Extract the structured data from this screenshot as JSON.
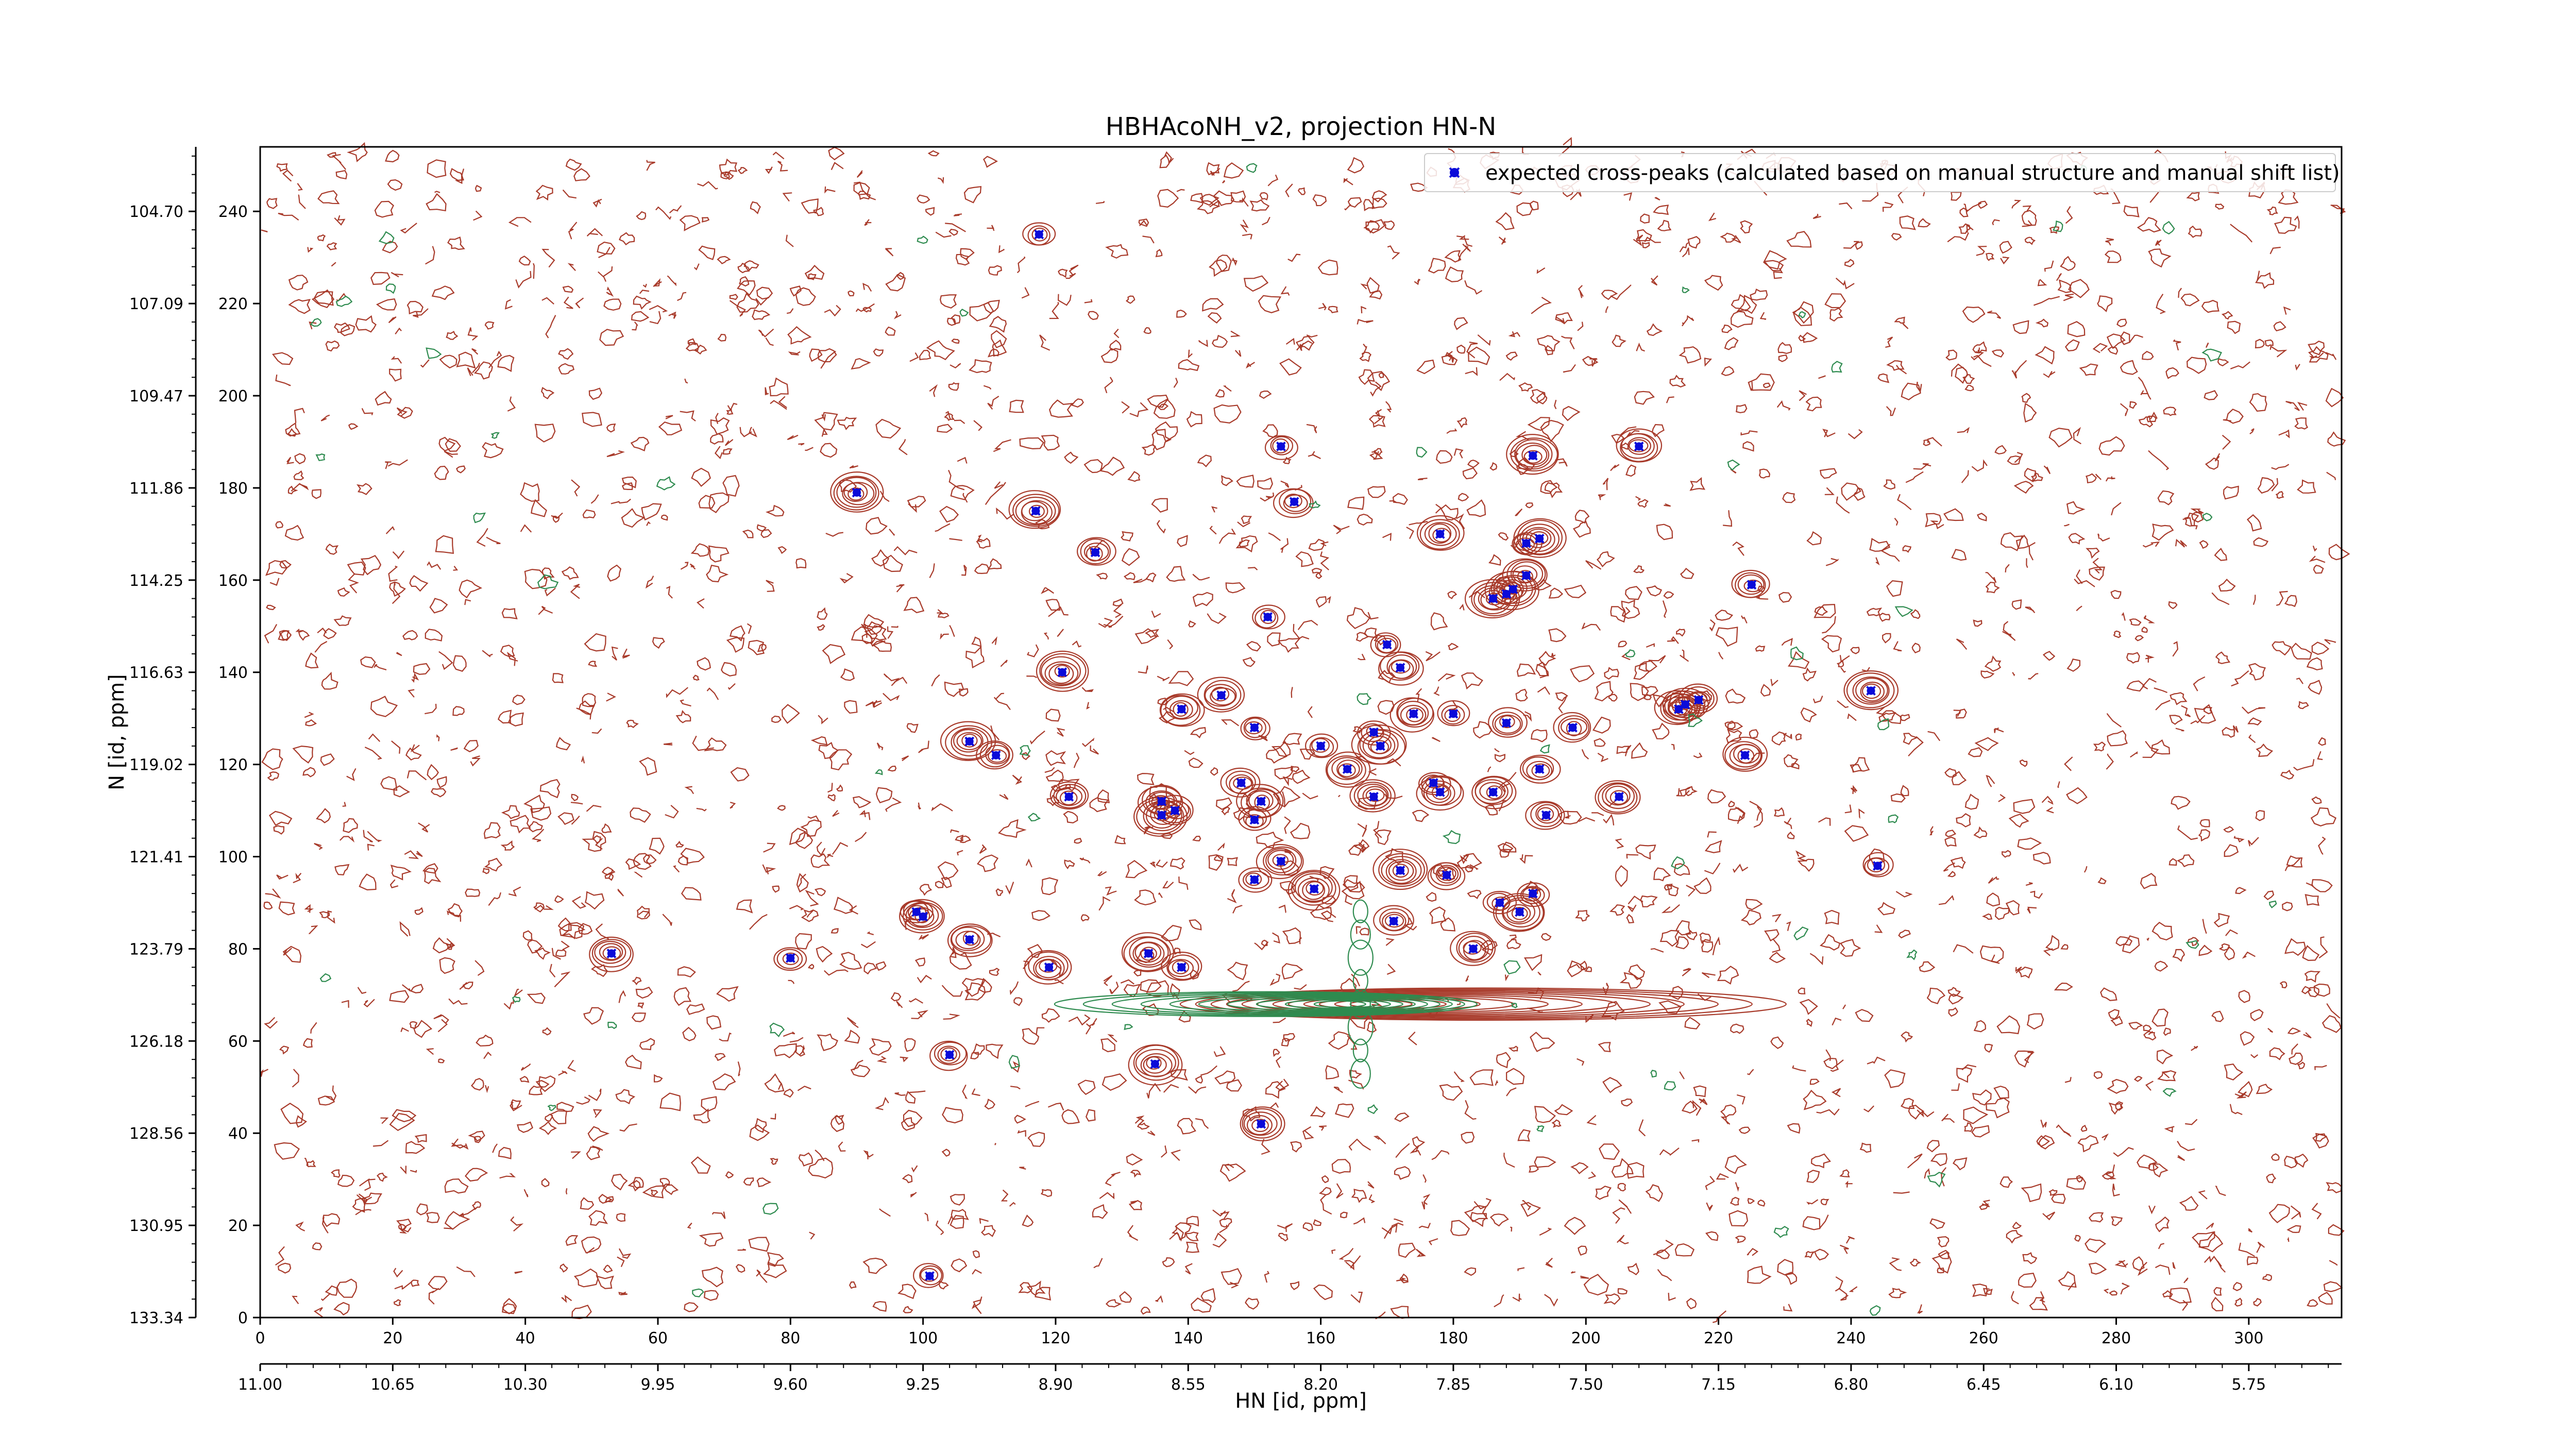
{
  "chart_data": {
    "type": "scatter",
    "title": "HBHAcoNH_v2, projection HN-N",
    "xlabel": "HN [id, ppm]",
    "ylabel": "N [id, ppm]",
    "x_index_range": [
      0,
      314
    ],
    "y_index_range": [
      0,
      254
    ],
    "x_index_ticks": [
      "0",
      "20",
      "40",
      "60",
      "80",
      "100",
      "120",
      "140",
      "160",
      "180",
      "200",
      "220",
      "240",
      "260",
      "280",
      "300"
    ],
    "x_ppm_ticks": [
      "11.00",
      "10.65",
      "10.30",
      "9.95",
      "9.60",
      "9.25",
      "8.90",
      "8.55",
      "8.20",
      "7.85",
      "7.50",
      "7.15",
      "6.80",
      "6.45",
      "6.10",
      "5.75"
    ],
    "y_index_ticks": [
      "0",
      "20",
      "40",
      "60",
      "80",
      "100",
      "120",
      "140",
      "160",
      "180",
      "200",
      "220",
      "240"
    ],
    "y_ppm_ticks": [
      "133.34",
      "130.95",
      "128.56",
      "126.18",
      "123.79",
      "121.41",
      "119.02",
      "116.63",
      "114.25",
      "111.86",
      "109.47",
      "107.09",
      "104.70"
    ],
    "grid": false,
    "legend_position": "top-right",
    "colors": {
      "peaks": "#0b0bd9",
      "positive_contours": "#a83a2a",
      "negative_contours": "#2e8b4f"
    },
    "series": [
      {
        "name": "expected cross-peaks (calculated based on manual structure and manual shift list)",
        "points": [
          [
            117.5,
            235
          ],
          [
            90,
            179
          ],
          [
            117,
            175
          ],
          [
            126,
            166
          ],
          [
            154,
            189
          ],
          [
            156,
            177
          ],
          [
            152,
            152
          ],
          [
            192,
            187
          ],
          [
            208,
            189
          ],
          [
            178,
            170
          ],
          [
            191,
            168
          ],
          [
            193,
            169
          ],
          [
            225,
            159
          ],
          [
            188,
            157
          ],
          [
            186,
            156
          ],
          [
            189,
            158
          ],
          [
            191,
            161
          ],
          [
            170,
            146
          ],
          [
            172,
            141
          ],
          [
            121,
            140
          ],
          [
            243,
            136
          ],
          [
            145,
            135
          ],
          [
            139,
            132
          ],
          [
            150,
            128
          ],
          [
            174,
            131
          ],
          [
            180,
            131
          ],
          [
            188,
            129
          ],
          [
            198,
            128
          ],
          [
            215,
            133
          ],
          [
            217,
            134
          ],
          [
            214,
            132
          ],
          [
            168,
            127
          ],
          [
            169,
            124
          ],
          [
            160,
            124
          ],
          [
            107,
            125
          ],
          [
            111,
            122
          ],
          [
            224,
            122
          ],
          [
            193,
            119
          ],
          [
            164,
            119
          ],
          [
            148,
            116
          ],
          [
            177,
            116
          ],
          [
            178,
            114
          ],
          [
            186,
            114
          ],
          [
            168,
            113
          ],
          [
            122,
            113
          ],
          [
            205,
            113
          ],
          [
            136,
            112
          ],
          [
            151,
            112
          ],
          [
            138,
            110
          ],
          [
            194,
            109
          ],
          [
            136,
            109
          ],
          [
            150,
            108
          ],
          [
            154,
            99
          ],
          [
            150,
            95
          ],
          [
            159,
            93
          ],
          [
            172,
            97
          ],
          [
            179,
            96
          ],
          [
            244,
            98
          ],
          [
            187,
            90
          ],
          [
            192,
            92
          ],
          [
            190,
            88
          ],
          [
            99,
            88
          ],
          [
            100,
            87
          ],
          [
            171,
            86
          ],
          [
            107,
            82
          ],
          [
            53,
            79
          ],
          [
            80,
            78
          ],
          [
            134,
            79
          ],
          [
            139,
            76
          ],
          [
            119,
            76
          ],
          [
            183,
            80
          ],
          [
            104,
            57
          ],
          [
            135,
            55
          ],
          [
            151,
            42
          ],
          [
            101,
            9
          ]
        ]
      }
    ]
  }
}
